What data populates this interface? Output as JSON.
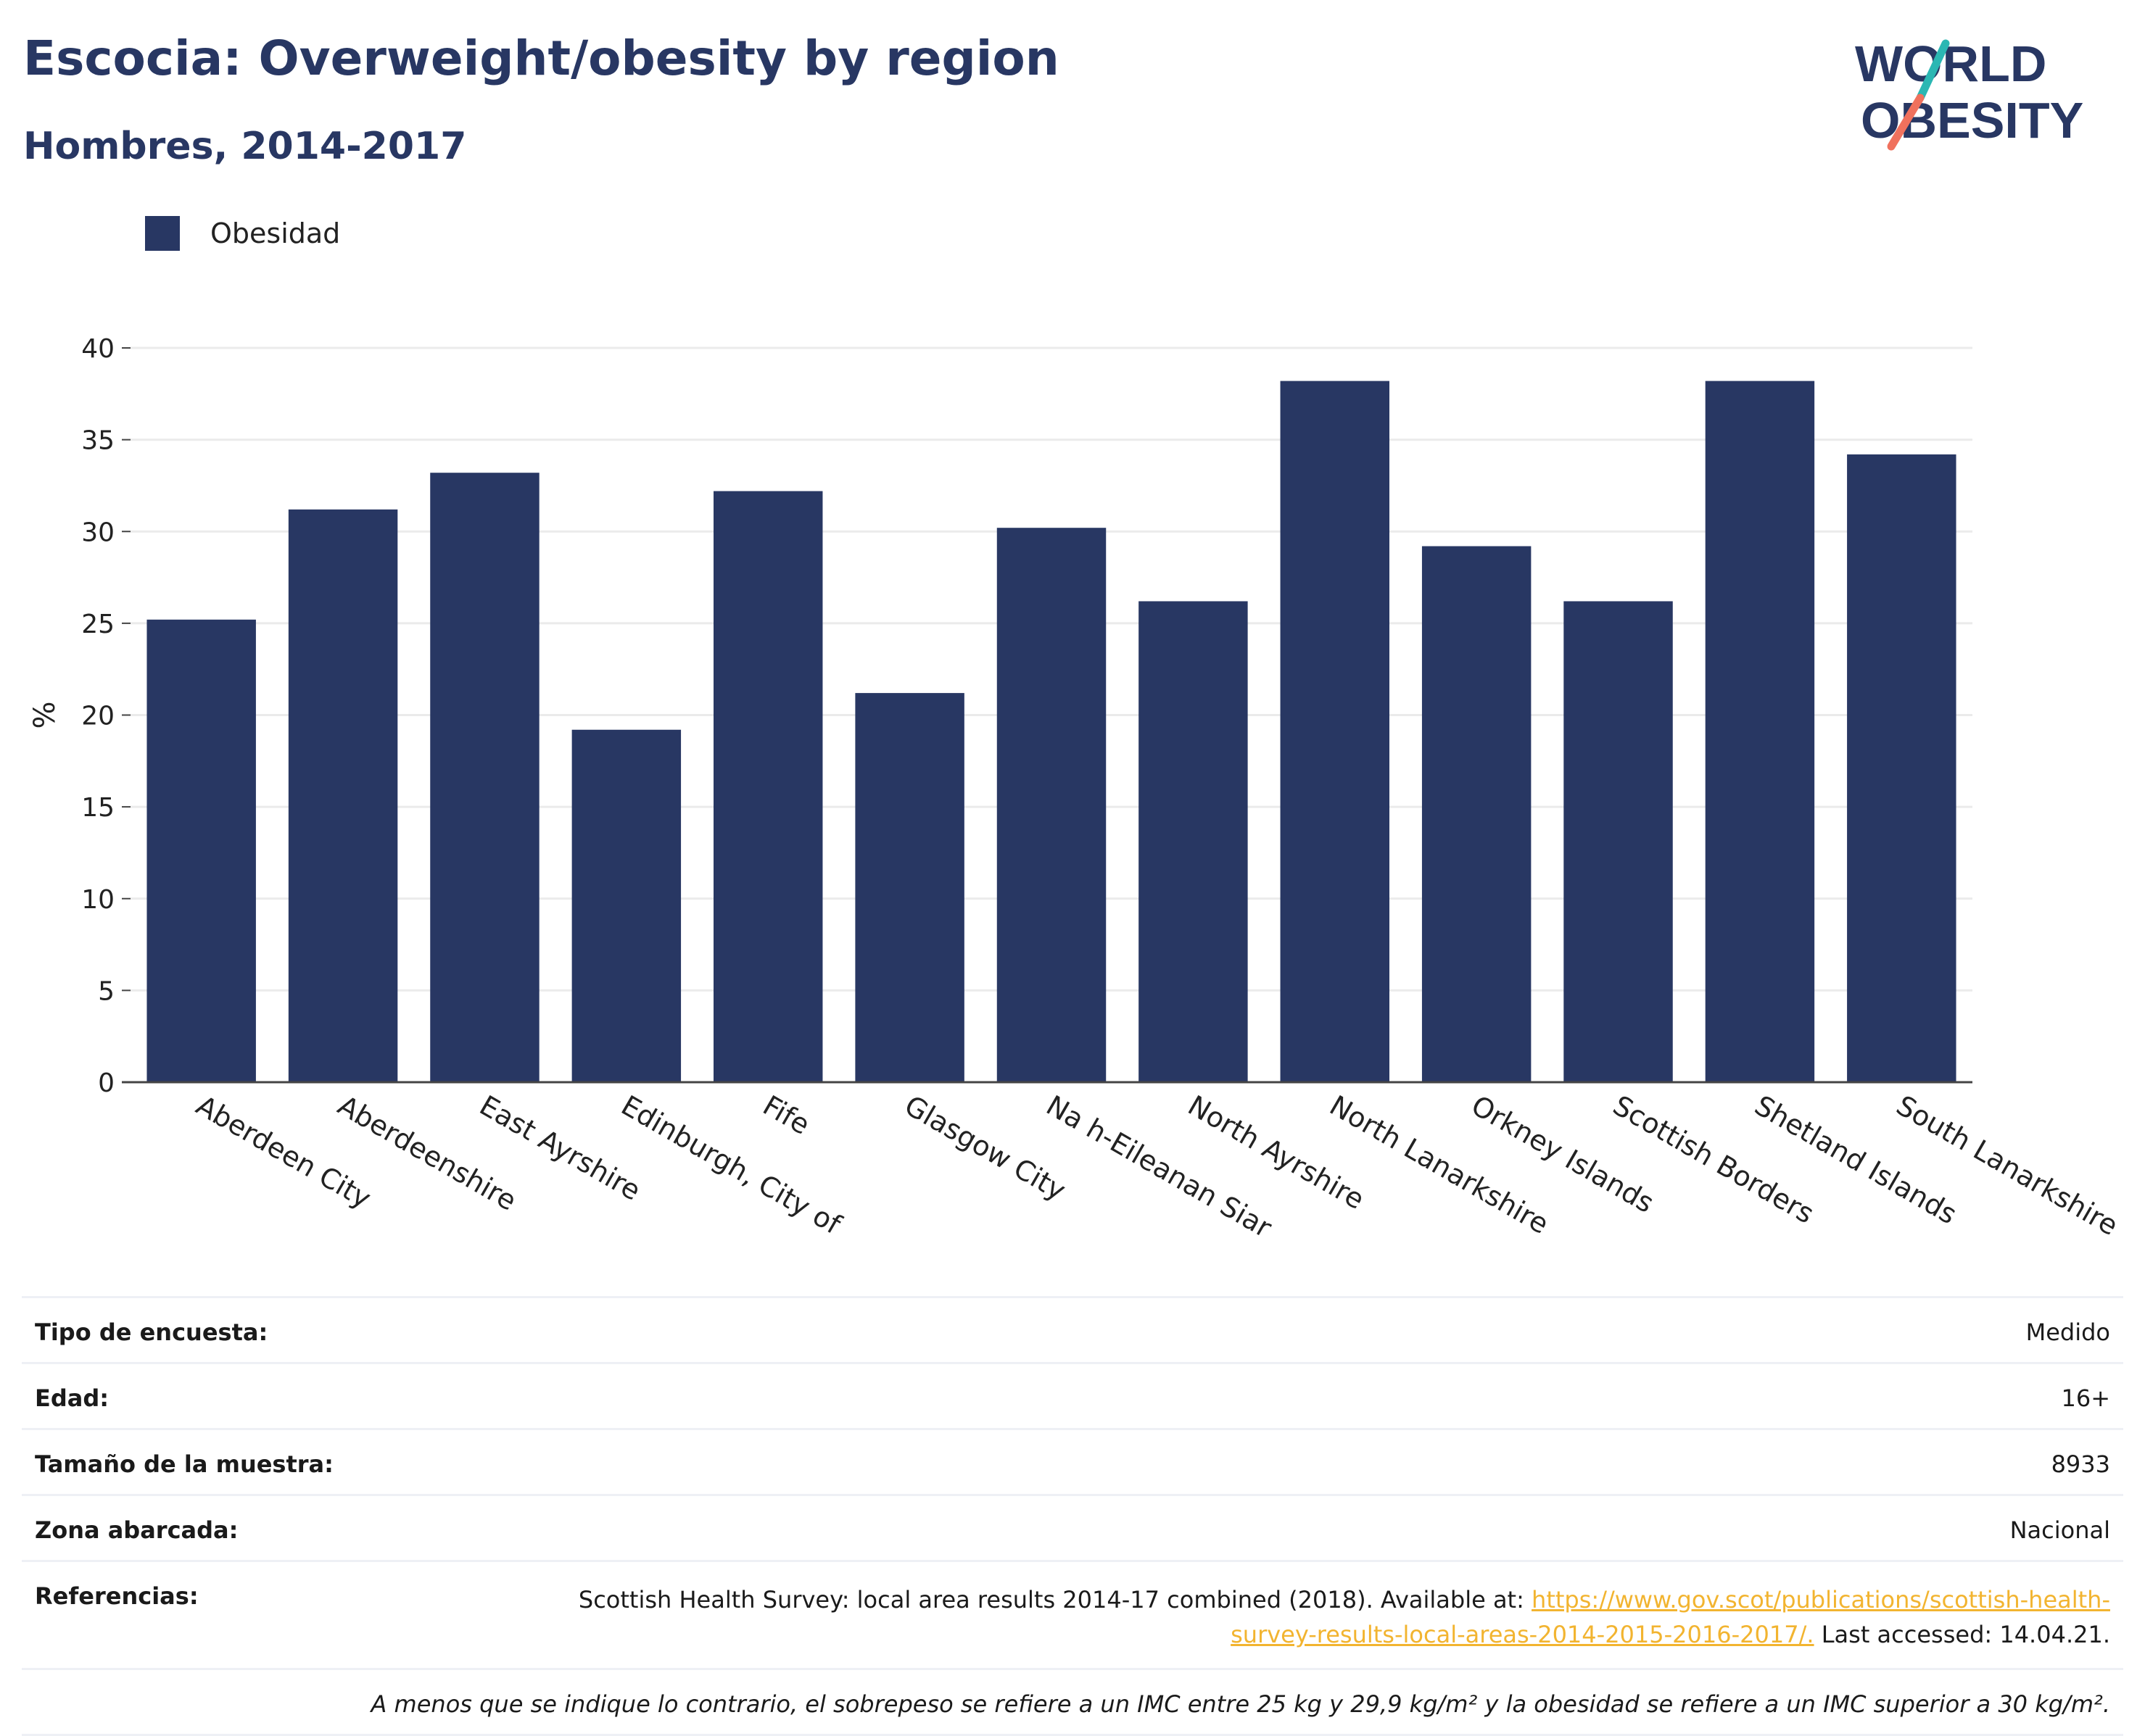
{
  "header": {
    "title": "Escocia: Overweight/obesity by region",
    "subtitle": "Hombres, 2014-2017"
  },
  "logo": {
    "line1": "WORLD",
    "line2": "OBESITY"
  },
  "colors": {
    "bar": "#283763",
    "title": "#283763",
    "link": "#f2b430",
    "grid": "#ebebeb",
    "logo_teal": "#2bb7b3",
    "logo_coral": "#f0715d"
  },
  "chart_data": {
    "type": "bar",
    "categories": [
      "Aberdeen City",
      "Aberdeenshire",
      "East Ayrshire",
      "Edinburgh, City of",
      "Fife",
      "Glasgow City",
      "Na h-Eileanan Siar",
      "North Ayrshire",
      "North Lanarkshire",
      "Orkney Islands",
      "Scottish Borders",
      "Shetland Islands",
      "South Lanarkshire"
    ],
    "series": [
      {
        "name": "Obesidad",
        "values": [
          25.2,
          31.2,
          33.2,
          19.2,
          32.2,
          21.2,
          30.2,
          26.2,
          38.2,
          29.2,
          26.2,
          38.2,
          34.2
        ]
      }
    ],
    "ylabel": "%",
    "xlabel": "",
    "ylim": [
      0,
      40
    ],
    "yticks": [
      0,
      5,
      10,
      15,
      20,
      25,
      30,
      35,
      40
    ],
    "grid": true,
    "legend_position": "top-left"
  },
  "info": {
    "survey_type_label": "Tipo de encuesta:",
    "survey_type_value": "Medido",
    "age_label": "Edad:",
    "age_value": "16+",
    "sample_label": "Tamaño de la muestra:",
    "sample_value": "8933",
    "area_label": "Zona abarcada:",
    "area_value": "Nacional",
    "refs_label": "Referencias:",
    "refs_text_before": "Scottish Health Survey: local area results 2014-17 combined (2018). Available at: ",
    "refs_link": "https://www.gov.scot/publications/scottish-health-survey-results-local-areas-2014-2015-2016-2017/.",
    "refs_text_after": " Last accessed: 14.04.21.",
    "note": "A menos que se indique lo contrario, el sobrepeso se refiere a un IMC entre 25 kg y 29,9 kg/m² y la obesidad se refiere a un IMC superior a 30 kg/m²."
  }
}
